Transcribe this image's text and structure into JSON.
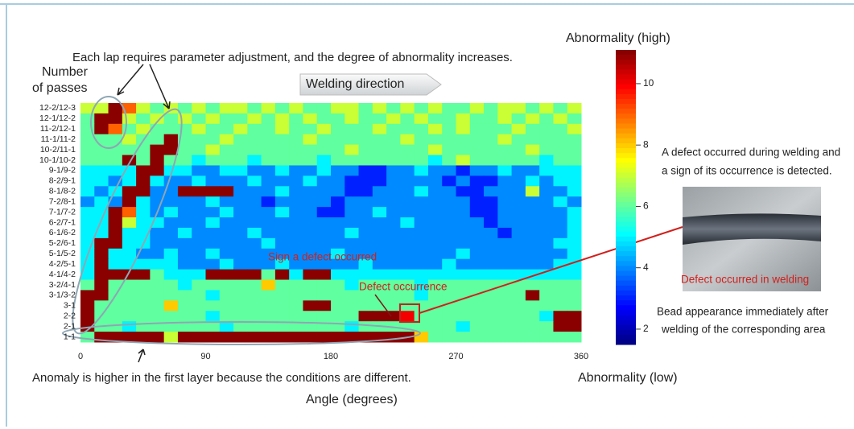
{
  "chart_data": {
    "type": "heatmap",
    "x_label": "Angle (degrees)",
    "y_label": [
      "Number",
      "of passes"
    ],
    "xlim": [
      0,
      360
    ],
    "xticks": [
      0,
      90,
      180,
      270,
      360
    ],
    "y": [
      "12-2/12-3",
      "12-1/12-2",
      "11-2/12-1",
      "11-1/11-2",
      "10-2/11-1",
      "10-1/10-2",
      "9-1/9-2",
      "8-2/9-1",
      "8-1/8-2",
      "7-2/8-1",
      "7-1/7-2",
      "6-2/7-1",
      "6-1/6-2",
      "5-2/6-1",
      "5-1/5-2",
      "4-2/5-1",
      "4-1/4-2",
      "3-2/4-1",
      "3-1/3-2",
      "3-1",
      "2-2",
      "2-1",
      "1-1"
    ],
    "z": [
      [
        7,
        7,
        11,
        9,
        7,
        6,
        7,
        6,
        7,
        6,
        7,
        7,
        6,
        7,
        6,
        7,
        6,
        6,
        7,
        7,
        6,
        7,
        6,
        7,
        6,
        7,
        6,
        6,
        7,
        6,
        7,
        7,
        6,
        7,
        6,
        7
      ],
      [
        6,
        11,
        11,
        7,
        6,
        7,
        6,
        7,
        6,
        7,
        6,
        6,
        7,
        6,
        7,
        6,
        7,
        6,
        6,
        7,
        6,
        6,
        7,
        6,
        7,
        6,
        6,
        7,
        6,
        6,
        7,
        6,
        7,
        6,
        7,
        6
      ],
      [
        6,
        11,
        9,
        6,
        7,
        6,
        6,
        6,
        7,
        6,
        6,
        7,
        6,
        6,
        7,
        6,
        6,
        7,
        6,
        6,
        6,
        7,
        6,
        6,
        6,
        7,
        6,
        7,
        6,
        6,
        6,
        7,
        6,
        6,
        6,
        7
      ],
      [
        6,
        6,
        6,
        7,
        6,
        6,
        11,
        6,
        6,
        6,
        7,
        6,
        6,
        6,
        6,
        6,
        7,
        6,
        6,
        6,
        6,
        6,
        6,
        7,
        6,
        6,
        6,
        6,
        6,
        6,
        7,
        6,
        6,
        6,
        6,
        6
      ],
      [
        6,
        6,
        6,
        6,
        6,
        11,
        11,
        6,
        6,
        7,
        6,
        6,
        6,
        6,
        6,
        6,
        6,
        6,
        6,
        7,
        6,
        6,
        6,
        6,
        6,
        7,
        6,
        6,
        6,
        6,
        6,
        6,
        7,
        6,
        6,
        6
      ],
      [
        6,
        6,
        6,
        11,
        6,
        11,
        6,
        6,
        5,
        6,
        6,
        6,
        5,
        6,
        6,
        6,
        6,
        5,
        6,
        6,
        6,
        6,
        6,
        6,
        6,
        5,
        6,
        7,
        6,
        6,
        6,
        6,
        6,
        5,
        6,
        6
      ],
      [
        5,
        5,
        5,
        5,
        11,
        11,
        5,
        5,
        4,
        4,
        5,
        5,
        4,
        4,
        5,
        4,
        4,
        5,
        4,
        4,
        3,
        3,
        4,
        4,
        5,
        4,
        4,
        3,
        4,
        4,
        5,
        4,
        4,
        5,
        5,
        5
      ],
      [
        5,
        5,
        4,
        5,
        11,
        5,
        4,
        4,
        5,
        4,
        4,
        4,
        5,
        4,
        4,
        4,
        5,
        4,
        4,
        3,
        3,
        3,
        4,
        4,
        4,
        4,
        3,
        4,
        3,
        3,
        4,
        4,
        5,
        4,
        5,
        5
      ],
      [
        5,
        4,
        5,
        11,
        11,
        4,
        4,
        11,
        11,
        11,
        11,
        4,
        4,
        4,
        5,
        4,
        4,
        4,
        4,
        3,
        3,
        4,
        4,
        4,
        5,
        4,
        4,
        3,
        3,
        4,
        4,
        4,
        7,
        4,
        4,
        5
      ],
      [
        4,
        5,
        4,
        11,
        5,
        4,
        4,
        4,
        4,
        5,
        4,
        4,
        4,
        3,
        4,
        4,
        4,
        4,
        3,
        4,
        4,
        4,
        4,
        4,
        4,
        4,
        4,
        4,
        3,
        3,
        4,
        4,
        4,
        4,
        5,
        4
      ],
      [
        5,
        5,
        11,
        9,
        5,
        4,
        5,
        4,
        4,
        4,
        5,
        4,
        4,
        4,
        5,
        4,
        4,
        3,
        3,
        4,
        4,
        5,
        4,
        4,
        4,
        4,
        4,
        4,
        3,
        3,
        4,
        4,
        4,
        4,
        4,
        5
      ],
      [
        5,
        5,
        11,
        7,
        5,
        5,
        4,
        4,
        4,
        5,
        4,
        4,
        4,
        4,
        4,
        4,
        4,
        4,
        4,
        4,
        4,
        4,
        4,
        5,
        4,
        4,
        4,
        4,
        4,
        3,
        4,
        4,
        4,
        4,
        4,
        5
      ],
      [
        5,
        5,
        11,
        5,
        5,
        4,
        4,
        5,
        4,
        4,
        4,
        4,
        5,
        4,
        4,
        4,
        4,
        4,
        4,
        5,
        4,
        4,
        4,
        4,
        4,
        4,
        4,
        4,
        4,
        4,
        3,
        4,
        4,
        4,
        4,
        5
      ],
      [
        5,
        11,
        11,
        5,
        5,
        4,
        4,
        4,
        4,
        4,
        4,
        4,
        4,
        5,
        4,
        4,
        4,
        4,
        4,
        4,
        4,
        4,
        4,
        4,
        4,
        4,
        4,
        4,
        4,
        4,
        4,
        4,
        4,
        4,
        5,
        5
      ],
      [
        5,
        11,
        5,
        5,
        4,
        4,
        5,
        4,
        4,
        5,
        4,
        4,
        4,
        4,
        4,
        4,
        4,
        4,
        5,
        4,
        4,
        4,
        4,
        4,
        4,
        4,
        4,
        5,
        4,
        4,
        4,
        4,
        4,
        4,
        4,
        5
      ],
      [
        5,
        11,
        5,
        5,
        5,
        5,
        5,
        4,
        4,
        4,
        5,
        4,
        4,
        4,
        5,
        4,
        4,
        4,
        4,
        4,
        5,
        4,
        4,
        4,
        4,
        4,
        5,
        4,
        4,
        4,
        4,
        4,
        4,
        4,
        5,
        5
      ],
      [
        5,
        11,
        11,
        11,
        11,
        6,
        5,
        5,
        5,
        11,
        11,
        11,
        11,
        6,
        11,
        5,
        11,
        11,
        5,
        5,
        5,
        5,
        5,
        5,
        5,
        5,
        5,
        5,
        5,
        5,
        5,
        5,
        5,
        5,
        5,
        5
      ],
      [
        6,
        11,
        6,
        6,
        6,
        6,
        6,
        5,
        6,
        6,
        6,
        6,
        6,
        8,
        6,
        6,
        6,
        6,
        6,
        5,
        6,
        6,
        6,
        6,
        5,
        6,
        6,
        6,
        6,
        6,
        6,
        6,
        6,
        6,
        6,
        6
      ],
      [
        11,
        11,
        6,
        6,
        6,
        6,
        6,
        6,
        6,
        5,
        6,
        6,
        6,
        6,
        6,
        6,
        6,
        6,
        6,
        6,
        6,
        6,
        6,
        6,
        5,
        6,
        6,
        6,
        6,
        6,
        6,
        6,
        11,
        6,
        6,
        6
      ],
      [
        11,
        6,
        6,
        6,
        6,
        6,
        8,
        6,
        6,
        6,
        6,
        6,
        6,
        6,
        6,
        6,
        11,
        11,
        6,
        6,
        6,
        6,
        6,
        6,
        6,
        6,
        6,
        6,
        6,
        6,
        6,
        6,
        6,
        6,
        6,
        6
      ],
      [
        11,
        6,
        6,
        6,
        6,
        6,
        6,
        6,
        6,
        5,
        6,
        6,
        6,
        6,
        6,
        6,
        6,
        6,
        6,
        6,
        11,
        11,
        11,
        10,
        6,
        6,
        6,
        6,
        6,
        6,
        6,
        6,
        6,
        5,
        11,
        11
      ],
      [
        11,
        6,
        6,
        5,
        6,
        6,
        6,
        6,
        6,
        6,
        5,
        6,
        6,
        6,
        6,
        6,
        6,
        6,
        6,
        5,
        6,
        6,
        6,
        6,
        6,
        6,
        6,
        5,
        6,
        6,
        6,
        6,
        6,
        6,
        11,
        11
      ],
      [
        6,
        11,
        11,
        11,
        11,
        11,
        7,
        11,
        11,
        11,
        11,
        11,
        11,
        11,
        11,
        11,
        11,
        11,
        11,
        11,
        11,
        11,
        11,
        11,
        8,
        6,
        6,
        6,
        6,
        6,
        6,
        6,
        6,
        6,
        6,
        6
      ]
    ],
    "colormap": "jet",
    "zlim": [
      1.5,
      11.1
    ],
    "colorbar_ticks": [
      2,
      4,
      6,
      8,
      10
    ],
    "colorbar_high": "Abnormality (high)",
    "colorbar_low": "Abnormality (low)",
    "annotations": {
      "lap": "Each lap requires parameter adjustment, and the degree of abnormality increases.",
      "direction": "Welding direction",
      "sign": "Sign a defect occurred",
      "occurrence": "Defect occurrence",
      "first_layer": "Anomaly is higher in the first layer because the conditions are different."
    }
  },
  "side_panel": {
    "caption_top": [
      "A defect occurred during welding and",
      "a sign of its occurrence is detected."
    ],
    "photo_label": "Defect occurred in welding",
    "caption_bottom": [
      "Bead appearance immediately after",
      "welding of the corresponding area"
    ]
  }
}
